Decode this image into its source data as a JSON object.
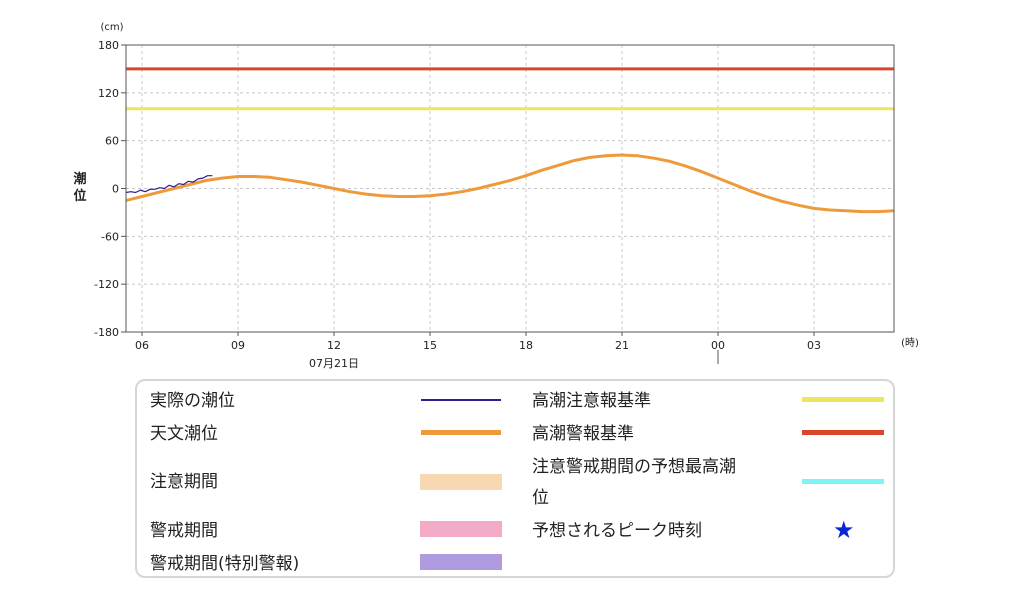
{
  "chart_data": {
    "type": "line",
    "y_unit": "(cm)",
    "x_unit": "(時)",
    "ylabel": "潮位",
    "ylim": [
      -180,
      180
    ],
    "yticks": [
      180,
      120,
      60,
      0,
      -60,
      -120,
      -180
    ],
    "x_range_hours": [
      5.5,
      29.5
    ],
    "xticks": [
      {
        "hour": 6,
        "label": "06"
      },
      {
        "hour": 9,
        "label": "09"
      },
      {
        "hour": 12,
        "label": "12"
      },
      {
        "hour": 15,
        "label": "15"
      },
      {
        "hour": 18,
        "label": "18"
      },
      {
        "hour": 21,
        "label": "21"
      },
      {
        "hour": 24,
        "label": "00"
      },
      {
        "hour": 27,
        "label": "03"
      }
    ],
    "date_label": {
      "hour": 12,
      "text": "07月21日"
    },
    "day_boundary_hour": 24,
    "grid": true,
    "reference_lines": [
      {
        "name": "高潮警報基準",
        "value": 150,
        "color": "#d9472b"
      },
      {
        "name": "高潮注意報基準",
        "value": 100,
        "color": "#ede65a"
      }
    ],
    "series": [
      {
        "name": "天文潮位",
        "color": "#ee9a3a",
        "x": [
          5.5,
          6,
          6.5,
          7,
          7.5,
          8,
          8.5,
          9,
          9.5,
          10,
          10.5,
          11,
          11.5,
          12,
          12.5,
          13,
          13.5,
          14,
          14.5,
          15,
          15.5,
          16,
          16.5,
          17,
          17.5,
          18,
          18.5,
          19,
          19.5,
          20,
          20.5,
          21,
          21.5,
          22,
          22.5,
          23,
          23.5,
          24,
          24.5,
          25,
          25.5,
          26,
          26.5,
          27,
          27.5,
          28,
          28.5,
          29,
          29.5
        ],
        "y": [
          -15,
          -10,
          -5,
          0,
          5,
          10,
          13,
          15,
          15,
          14,
          11,
          8,
          4,
          0,
          -4,
          -7,
          -9,
          -10,
          -10,
          -9,
          -7,
          -4,
          0,
          5,
          10,
          16,
          23,
          29,
          35,
          39,
          41,
          42,
          41,
          38,
          34,
          28,
          21,
          13,
          5,
          -3,
          -10,
          -16,
          -21,
          -25,
          -27,
          -28,
          -29,
          -29,
          -28
        ]
      },
      {
        "name": "実際の潮位",
        "color": "#33198e",
        "x": [
          5.5,
          5.65,
          5.8,
          5.95,
          6.1,
          6.25,
          6.4,
          6.55,
          6.7,
          6.85,
          7.0,
          7.15,
          7.3,
          7.45,
          7.6,
          7.75,
          7.9,
          8.05,
          8.2
        ],
        "y": [
          -5,
          -4,
          -5,
          -2,
          -4,
          -1,
          -1,
          1,
          0,
          4,
          2,
          6,
          5,
          9,
          8,
          12,
          13,
          16,
          16
        ]
      }
    ]
  },
  "legend": {
    "items": [
      {
        "label": "実際の潮位",
        "color": "#33198e"
      },
      {
        "label": "天文潮位",
        "color": "#ee9a3a"
      },
      {
        "label": "注意期間",
        "color": "#f8d8b2"
      },
      {
        "label": "警戒期間",
        "color": "#f2aac6"
      },
      {
        "label": "警戒期間(特別警報)",
        "color": "#b09be0"
      },
      {
        "label": "高潮注意報基準",
        "color": "#ede65a"
      },
      {
        "label": "高潮警報基準",
        "color": "#d9472b"
      },
      {
        "label_line1": "注意警戒期間の予想最高潮",
        "label_line2": "位",
        "color": "#7ef4f4"
      },
      {
        "label": "予想されるピーク時刻",
        "icon": "star-icon",
        "color": "#0b26d6",
        "symbol": "★"
      }
    ]
  }
}
